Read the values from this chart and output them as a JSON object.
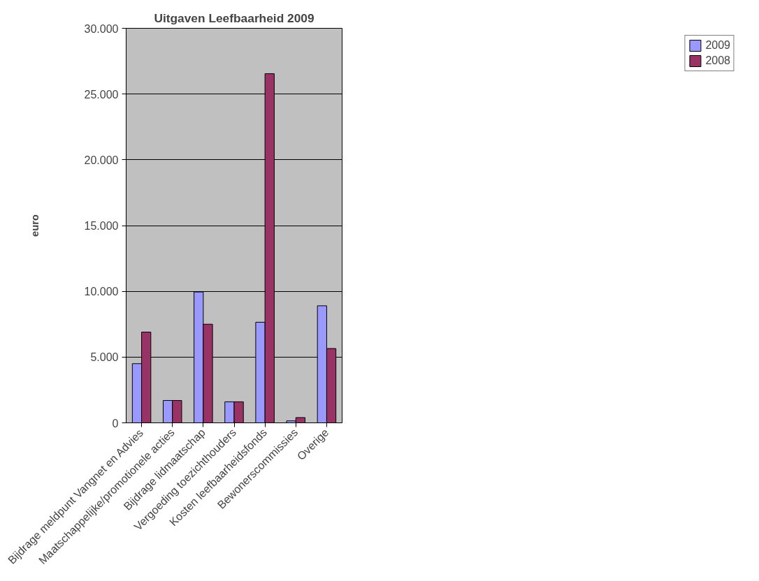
{
  "chart_data": {
    "type": "bar",
    "title": "Uitgaven Leefbaarheid 2009",
    "ylabel": "euro",
    "categories": [
      "Bijdrage meldpunt Vangnet en Advies",
      "Maatschappelijke/promotionele acties",
      "Bijdrage lidmaatschap",
      "Vergoeding toezichthouders",
      "Kosten leefbaarheidsfonds",
      "Bewonerscommissies",
      "Overige"
    ],
    "series": [
      {
        "name": "2009",
        "color": "#9999ff",
        "values": [
          4500,
          1700,
          9950,
          1600,
          7650,
          150,
          8900
        ]
      },
      {
        "name": "2008",
        "color": "#993366",
        "values": [
          6900,
          1700,
          7500,
          1600,
          26550,
          400,
          5650
        ]
      }
    ],
    "ylim": [
      0,
      30000
    ],
    "yticks": [
      {
        "value": 0,
        "label": "0"
      },
      {
        "value": 5000,
        "label": "5.000"
      },
      {
        "value": 10000,
        "label": "10.000"
      },
      {
        "value": 15000,
        "label": "15.000"
      },
      {
        "value": 20000,
        "label": "20.000"
      },
      {
        "value": 25000,
        "label": "25.000"
      },
      {
        "value": 30000,
        "label": "30.000"
      }
    ],
    "grid": "y",
    "legend": "right"
  }
}
